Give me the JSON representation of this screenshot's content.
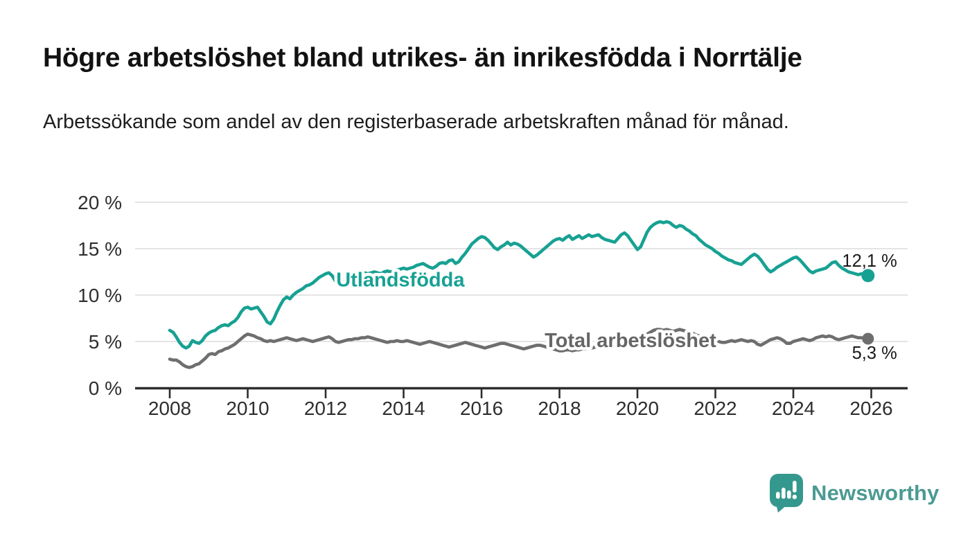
{
  "header": {
    "title": "Högre arbetslöshet bland utrikes- än inrikesfödda i Norrtälje",
    "subtitle": "Arbetssökande som andel av den registerbaserade arbetskraften månad för månad."
  },
  "chart_data": {
    "type": "line",
    "unit": "%",
    "grid": "horizontal",
    "legend_position": "inline-line-labels",
    "x_start_year": 2008,
    "x_monthly": true,
    "xlim": [
      2007.1,
      2026.95
    ],
    "ylim": [
      0,
      20
    ],
    "y_tick_values": [
      0,
      5,
      10,
      15,
      20
    ],
    "y_tick_labels": [
      "0 %",
      "5 %",
      "10 %",
      "15 %",
      "20 %"
    ],
    "x_tick_values": [
      2008,
      2010,
      2012,
      2014,
      2016,
      2018,
      2020,
      2022,
      2024,
      2026
    ],
    "x_tick_labels": [
      "2008",
      "2010",
      "2012",
      "2014",
      "2016",
      "2018",
      "2020",
      "2022",
      "2024",
      "2026"
    ],
    "series": [
      {
        "name": "Utlandsfödda",
        "color": "#17a193",
        "label_color": "#17a193",
        "line_label": {
          "text": "Utlandsfödda",
          "year": 2012.27,
          "value": 10.95
        },
        "end_label": "12,1 %",
        "last_value": 12.1,
        "values": [
          6.2,
          6.0,
          5.5,
          4.9,
          4.5,
          4.3,
          4.5,
          5.1,
          4.9,
          4.8,
          5.1,
          5.6,
          5.9,
          6.1,
          6.2,
          6.5,
          6.7,
          6.8,
          6.7,
          7.0,
          7.2,
          7.6,
          8.2,
          8.6,
          8.7,
          8.5,
          8.6,
          8.7,
          8.2,
          7.7,
          7.1,
          6.9,
          7.4,
          8.2,
          8.9,
          9.5,
          9.8,
          9.6,
          10.0,
          10.3,
          10.5,
          10.7,
          11.0,
          11.1,
          11.3,
          11.6,
          11.9,
          12.1,
          12.3,
          12.4,
          12.1,
          11.5,
          11.1,
          11.4,
          11.8,
          12.0,
          12.1,
          12.0,
          12.2,
          12.3,
          12.4,
          12.3,
          12.4,
          12.5,
          12.4,
          12.3,
          12.5,
          12.6,
          12.5,
          12.6,
          12.7,
          12.8,
          12.9,
          12.8,
          12.9,
          13.0,
          13.2,
          13.3,
          13.4,
          13.2,
          13.0,
          12.9,
          13.1,
          13.4,
          13.5,
          13.4,
          13.7,
          13.8,
          13.4,
          13.6,
          14.1,
          14.5,
          15.0,
          15.5,
          15.8,
          16.1,
          16.3,
          16.2,
          15.9,
          15.5,
          15.1,
          14.9,
          15.2,
          15.4,
          15.7,
          15.4,
          15.6,
          15.5,
          15.3,
          15.0,
          14.7,
          14.4,
          14.1,
          14.3,
          14.6,
          14.9,
          15.2,
          15.5,
          15.8,
          16.0,
          16.1,
          15.9,
          16.2,
          16.4,
          16.0,
          16.2,
          16.4,
          16.1,
          16.3,
          16.5,
          16.3,
          16.4,
          16.5,
          16.2,
          16.0,
          15.9,
          15.8,
          15.7,
          16.1,
          16.5,
          16.7,
          16.4,
          15.9,
          15.4,
          14.9,
          15.2,
          16.0,
          16.8,
          17.3,
          17.6,
          17.8,
          17.9,
          17.8,
          17.9,
          17.8,
          17.5,
          17.3,
          17.5,
          17.4,
          17.1,
          16.9,
          16.6,
          16.4,
          16.0,
          15.7,
          15.4,
          15.2,
          15.0,
          14.7,
          14.5,
          14.2,
          14.0,
          13.8,
          13.7,
          13.5,
          13.4,
          13.3,
          13.6,
          13.9,
          14.2,
          14.4,
          14.2,
          13.8,
          13.3,
          12.8,
          12.5,
          12.7,
          13.0,
          13.2,
          13.4,
          13.6,
          13.8,
          14.0,
          14.1,
          13.8,
          13.4,
          13.0,
          12.6,
          12.4,
          12.6,
          12.7,
          12.8,
          12.9,
          13.2,
          13.5,
          13.6,
          13.2,
          12.9,
          12.7,
          12.5,
          12.4,
          12.3,
          12.2,
          12.3,
          12.2,
          12.1
        ]
      },
      {
        "name": "Total arbetslöshet",
        "color": "#6e6e6e",
        "label_color": "#666666",
        "line_label": {
          "text": "Total arbetslöshet",
          "year": 2017.62,
          "value": 4.4
        },
        "end_label": "5,3 %",
        "last_value": 5.3,
        "values": [
          3.1,
          3.0,
          3.0,
          2.8,
          2.5,
          2.3,
          2.2,
          2.3,
          2.5,
          2.6,
          2.9,
          3.2,
          3.6,
          3.7,
          3.6,
          3.9,
          4.0,
          4.2,
          4.3,
          4.5,
          4.7,
          5.0,
          5.3,
          5.6,
          5.8,
          5.7,
          5.6,
          5.4,
          5.3,
          5.1,
          5.0,
          5.1,
          5.0,
          5.1,
          5.2,
          5.3,
          5.4,
          5.3,
          5.2,
          5.1,
          5.2,
          5.3,
          5.2,
          5.1,
          5.0,
          5.1,
          5.2,
          5.3,
          5.4,
          5.5,
          5.3,
          5.0,
          4.9,
          5.0,
          5.1,
          5.2,
          5.2,
          5.3,
          5.3,
          5.4,
          5.4,
          5.5,
          5.4,
          5.3,
          5.2,
          5.1,
          5.0,
          4.9,
          5.0,
          5.0,
          5.1,
          5.0,
          5.0,
          5.1,
          5.0,
          4.9,
          4.8,
          4.7,
          4.8,
          4.9,
          5.0,
          4.9,
          4.8,
          4.7,
          4.6,
          4.5,
          4.4,
          4.5,
          4.6,
          4.7,
          4.8,
          4.9,
          4.8,
          4.7,
          4.6,
          4.5,
          4.4,
          4.3,
          4.4,
          4.5,
          4.6,
          4.7,
          4.8,
          4.8,
          4.7,
          4.6,
          4.5,
          4.4,
          4.3,
          4.2,
          4.3,
          4.4,
          4.5,
          4.6,
          4.6,
          4.5,
          4.4,
          4.3,
          4.2,
          4.1,
          4.0,
          4.0,
          4.1,
          4.1,
          4.0,
          4.1,
          4.1,
          4.2,
          4.2,
          4.3,
          4.3,
          4.4,
          4.4,
          4.3,
          4.3,
          4.4,
          4.4,
          4.5,
          4.5,
          4.4,
          4.5,
          4.5,
          4.6,
          4.7,
          4.8,
          5.0,
          5.4,
          5.8,
          6.0,
          6.2,
          6.3,
          6.3,
          6.2,
          6.3,
          6.2,
          6.1,
          6.2,
          6.3,
          6.2,
          6.1,
          6.0,
          5.9,
          5.7,
          5.6,
          5.5,
          5.4,
          5.3,
          5.2,
          5.1,
          5.0,
          4.9,
          4.9,
          5.0,
          5.1,
          5.0,
          5.1,
          5.2,
          5.1,
          5.0,
          5.1,
          5.0,
          4.7,
          4.6,
          4.8,
          5.0,
          5.2,
          5.3,
          5.4,
          5.3,
          5.1,
          4.8,
          4.8,
          5.0,
          5.1,
          5.2,
          5.3,
          5.2,
          5.1,
          5.2,
          5.4,
          5.5,
          5.6,
          5.5,
          5.6,
          5.5,
          5.3,
          5.2,
          5.3,
          5.4,
          5.5,
          5.6,
          5.5,
          5.4,
          5.4,
          5.3,
          5.3
        ]
      }
    ]
  },
  "footer": {
    "brand": "Newsworthy"
  }
}
